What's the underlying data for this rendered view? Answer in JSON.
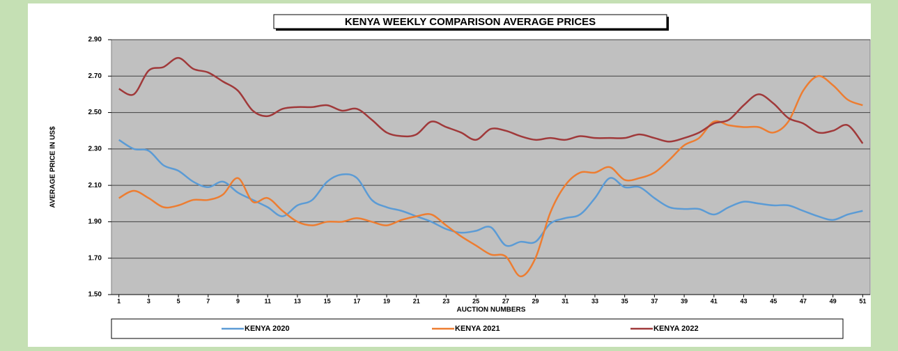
{
  "chart_data": {
    "type": "line",
    "title": "KENYA WEEKLY COMPARISON AVERAGE PRICES",
    "x_label": "AUCTION NUMBERS",
    "y_label": "AVERAGE PRICE IN US$",
    "x": [
      1,
      2,
      3,
      4,
      5,
      6,
      7,
      8,
      9,
      10,
      11,
      12,
      13,
      14,
      15,
      16,
      17,
      18,
      19,
      20,
      21,
      22,
      23,
      24,
      25,
      26,
      27,
      28,
      29,
      30,
      31,
      32,
      33,
      34,
      35,
      36,
      37,
      38,
      39,
      40,
      41,
      42,
      43,
      44,
      45,
      46,
      47,
      48,
      49,
      50,
      51
    ],
    "xlim": [
      0.5,
      51.5
    ],
    "xticks": [
      1,
      3,
      5,
      7,
      9,
      11,
      13,
      15,
      17,
      19,
      21,
      23,
      25,
      27,
      29,
      31,
      33,
      35,
      37,
      39,
      41,
      43,
      45,
      47,
      49,
      51
    ],
    "ylim": [
      1.5,
      2.9
    ],
    "yticks": [
      {
        "value": 1.5,
        "label": "1.50"
      },
      {
        "value": 1.7,
        "label": "1.70"
      },
      {
        "value": 1.9,
        "label": "1.90"
      },
      {
        "value": 2.1,
        "label": "2.10"
      },
      {
        "value": 2.3,
        "label": "2.30"
      },
      {
        "value": 2.5,
        "label": "2.50"
      },
      {
        "value": 2.7,
        "label": "2.70"
      },
      {
        "value": 2.9,
        "label": "2.90"
      }
    ],
    "grid": true,
    "legend": "bottom",
    "series": [
      {
        "name": "KENYA 2020",
        "color": "#5b9bd5",
        "values": [
          2.35,
          2.3,
          2.29,
          2.21,
          2.18,
          2.12,
          2.09,
          2.12,
          2.06,
          2.02,
          1.98,
          1.93,
          1.99,
          2.02,
          2.12,
          2.16,
          2.14,
          2.02,
          1.98,
          1.96,
          1.93,
          1.9,
          1.86,
          1.84,
          1.85,
          1.87,
          1.77,
          1.79,
          1.79,
          1.89,
          1.92,
          1.94,
          2.03,
          2.14,
          2.09,
          2.09,
          2.03,
          1.98,
          1.97,
          1.97,
          1.94,
          1.98,
          2.01,
          2.0,
          1.99,
          1.99,
          1.96,
          1.93,
          1.91,
          1.94,
          1.96
        ]
      },
      {
        "name": "KENYA 2021",
        "color": "#ed7d31",
        "values": [
          2.03,
          2.07,
          2.03,
          1.98,
          1.99,
          2.02,
          2.02,
          2.05,
          2.14,
          2.01,
          2.03,
          1.96,
          1.9,
          1.88,
          1.9,
          1.9,
          1.92,
          1.9,
          1.88,
          1.91,
          1.93,
          1.94,
          1.88,
          1.82,
          1.77,
          1.72,
          1.71,
          1.6,
          1.7,
          1.95,
          2.1,
          2.17,
          2.17,
          2.2,
          2.13,
          2.14,
          2.17,
          2.24,
          2.32,
          2.36,
          2.45,
          2.43,
          2.42,
          2.42,
          2.39,
          2.45,
          2.62,
          2.7,
          2.65,
          2.57,
          2.54
        ]
      },
      {
        "name": "KENYA 2022",
        "color": "#a0393a",
        "values": [
          2.63,
          2.6,
          2.73,
          2.75,
          2.8,
          2.74,
          2.72,
          2.67,
          2.62,
          2.51,
          2.48,
          2.52,
          2.53,
          2.53,
          2.54,
          2.51,
          2.52,
          2.46,
          2.39,
          2.37,
          2.38,
          2.45,
          2.42,
          2.39,
          2.35,
          2.41,
          2.4,
          2.37,
          2.35,
          2.36,
          2.35,
          2.37,
          2.36,
          2.36,
          2.36,
          2.38,
          2.36,
          2.34,
          2.36,
          2.39,
          2.44,
          2.46,
          2.54,
          2.6,
          2.55,
          2.47,
          2.44,
          2.39,
          2.4,
          2.43,
          2.33
        ]
      }
    ]
  }
}
